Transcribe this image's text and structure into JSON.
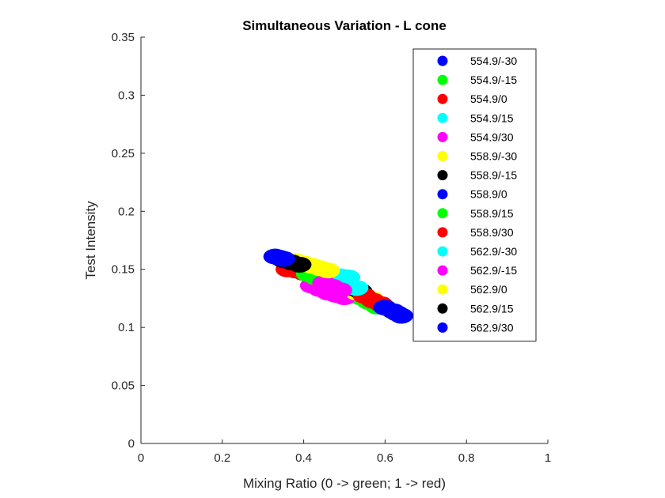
{
  "chart_data": {
    "type": "scatter",
    "title": "Simultaneous Variation - L cone",
    "xlabel": "Mixing Ratio (0 -> green; 1 -> red)",
    "ylabel": "Test Intensity",
    "xlim": [
      0,
      1
    ],
    "ylim": [
      0,
      0.35
    ],
    "xticks": [
      "0",
      "0.2",
      "0.4",
      "0.6",
      "0.8",
      "1"
    ],
    "yticks": [
      "0",
      "0.05",
      "0.1",
      "0.15",
      "0.2",
      "0.25",
      "0.3",
      "0.35"
    ],
    "grid": false,
    "legend_position": "top-right",
    "series": [
      {
        "name": "554.9/-30",
        "color": "#0000ff",
        "x": [
          0.46,
          0.48,
          0.5,
          0.52,
          0.54,
          0.56
        ],
        "y": [
          0.142,
          0.138,
          0.134,
          0.13,
          0.126,
          0.122
        ]
      },
      {
        "name": "554.9/-15",
        "color": "#00ff00",
        "x": [
          0.48,
          0.5,
          0.52,
          0.54,
          0.56,
          0.58
        ],
        "y": [
          0.138,
          0.134,
          0.13,
          0.126,
          0.122,
          0.118
        ]
      },
      {
        "name": "554.9/0",
        "color": "#ff0000",
        "x": [
          0.36,
          0.38,
          0.4,
          0.42,
          0.44,
          0.46
        ],
        "y": [
          0.15,
          0.149,
          0.147,
          0.145,
          0.143,
          0.141
        ]
      },
      {
        "name": "554.9/15",
        "color": "#00ffff",
        "x": [
          0.43,
          0.45,
          0.47,
          0.49,
          0.51
        ],
        "y": [
          0.147,
          0.146,
          0.145,
          0.144,
          0.143
        ]
      },
      {
        "name": "554.9/30",
        "color": "#ff00ff",
        "x": [
          0.42,
          0.44,
          0.46,
          0.48,
          0.5
        ],
        "y": [
          0.136,
          0.133,
          0.13,
          0.128,
          0.126
        ]
      },
      {
        "name": "558.9/-30",
        "color": "#ffff00",
        "x": [
          0.53,
          0.55,
          0.57
        ],
        "y": [
          0.13,
          0.127,
          0.124
        ]
      },
      {
        "name": "558.9/-15",
        "color": "#000000",
        "x": [
          0.5,
          0.52,
          0.54
        ],
        "y": [
          0.137,
          0.134,
          0.131
        ]
      },
      {
        "name": "558.9/0",
        "color": "#0000ff",
        "x": [
          0.46,
          0.48,
          0.5
        ],
        "y": [
          0.141,
          0.138,
          0.135
        ]
      },
      {
        "name": "558.9/15",
        "color": "#00ff00",
        "x": [
          0.41,
          0.43,
          0.45
        ],
        "y": [
          0.146,
          0.143,
          0.14
        ]
      },
      {
        "name": "558.9/30",
        "color": "#ff0000",
        "x": [
          0.55,
          0.57,
          0.59
        ],
        "y": [
          0.127,
          0.123,
          0.12
        ]
      },
      {
        "name": "562.9/-30",
        "color": "#00ffff",
        "x": [
          0.49,
          0.51,
          0.53
        ],
        "y": [
          0.14,
          0.137,
          0.134
        ]
      },
      {
        "name": "562.9/-15",
        "color": "#ff00ff",
        "x": [
          0.45,
          0.47,
          0.49
        ],
        "y": [
          0.138,
          0.135,
          0.132
        ]
      },
      {
        "name": "562.9/0",
        "color": "#ffff00",
        "x": [
          0.38,
          0.4,
          0.42,
          0.44,
          0.46
        ],
        "y": [
          0.157,
          0.155,
          0.153,
          0.151,
          0.149
        ]
      },
      {
        "name": "562.9/15",
        "color": "#000000",
        "x": [
          0.35,
          0.37,
          0.39
        ],
        "y": [
          0.158,
          0.156,
          0.154
        ]
      },
      {
        "name": "562.9/30",
        "color": "#0000ff",
        "x": [
          0.33,
          0.34,
          0.35,
          0.6,
          0.62,
          0.63,
          0.64
        ],
        "y": [
          0.161,
          0.16,
          0.159,
          0.117,
          0.114,
          0.112,
          0.11
        ]
      }
    ]
  }
}
